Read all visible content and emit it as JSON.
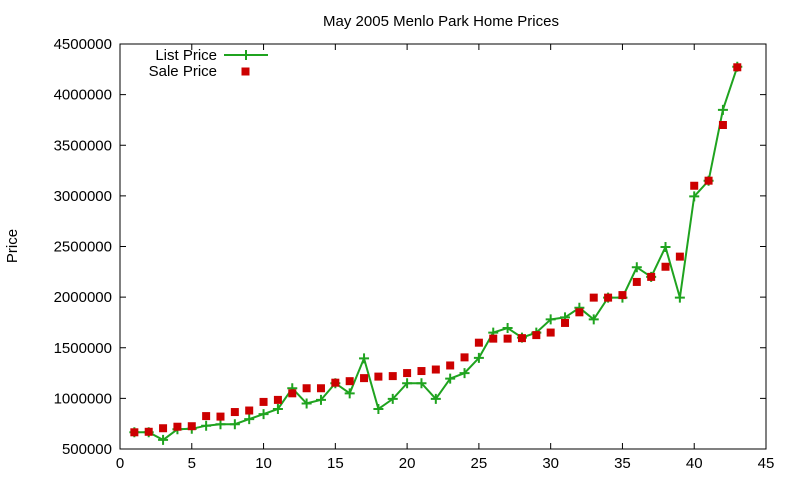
{
  "chart_data": {
    "type": "line",
    "title": "May 2005 Menlo Park Home Prices",
    "xlabel": "",
    "ylabel": "Price",
    "xlim": [
      0,
      45
    ],
    "ylim": [
      500000,
      4500000
    ],
    "x_ticks": [
      0,
      5,
      10,
      15,
      20,
      25,
      30,
      35,
      40,
      45
    ],
    "y_ticks": [
      500000,
      1000000,
      1500000,
      2000000,
      2500000,
      3000000,
      3500000,
      4000000,
      4500000
    ],
    "grid": false,
    "legend_position": "top-left",
    "series": [
      {
        "name": "List Price",
        "style": "line-with-plus-markers",
        "color": "#1fa31f",
        "x": [
          1,
          2,
          3,
          4,
          5,
          6,
          7,
          8,
          9,
          10,
          11,
          12,
          13,
          14,
          15,
          16,
          17,
          18,
          19,
          20,
          21,
          22,
          23,
          24,
          25,
          26,
          27,
          28,
          29,
          30,
          31,
          32,
          33,
          34,
          35,
          36,
          37,
          38,
          39,
          40,
          41,
          42,
          43
        ],
        "values": [
          665000,
          665000,
          590000,
          695000,
          700000,
          730000,
          745000,
          745000,
          795000,
          845000,
          895000,
          1100000,
          950000,
          985000,
          1150000,
          1050000,
          1395000,
          895000,
          995000,
          1150000,
          1150000,
          995000,
          1195000,
          1250000,
          1400000,
          1650000,
          1695000,
          1600000,
          1650000,
          1780000,
          1800000,
          1895000,
          1780000,
          1995000,
          1995000,
          2295000,
          2200000,
          2495000,
          1995000,
          2995000,
          3150000,
          3850000,
          4275000
        ]
      },
      {
        "name": "Sale Price",
        "style": "square-markers",
        "color": "#cc0000",
        "x": [
          1,
          2,
          3,
          4,
          5,
          6,
          7,
          8,
          9,
          10,
          11,
          12,
          13,
          14,
          15,
          16,
          17,
          18,
          19,
          20,
          21,
          22,
          23,
          24,
          25,
          26,
          27,
          28,
          29,
          30,
          31,
          32,
          33,
          34,
          35,
          36,
          37,
          38,
          39,
          40,
          41,
          42,
          43
        ],
        "values": [
          665000,
          670000,
          705000,
          720000,
          725000,
          825000,
          820000,
          865000,
          880000,
          965000,
          985000,
          1050000,
          1100000,
          1100000,
          1155000,
          1170000,
          1200000,
          1215000,
          1220000,
          1250000,
          1270000,
          1285000,
          1325000,
          1405000,
          1550000,
          1590000,
          1590000,
          1595000,
          1625000,
          1650000,
          1745000,
          1850000,
          1995000,
          1995000,
          2020000,
          2150000,
          2200000,
          2300000,
          2400000,
          3100000,
          3150000,
          3700000,
          4270000
        ]
      }
    ]
  }
}
